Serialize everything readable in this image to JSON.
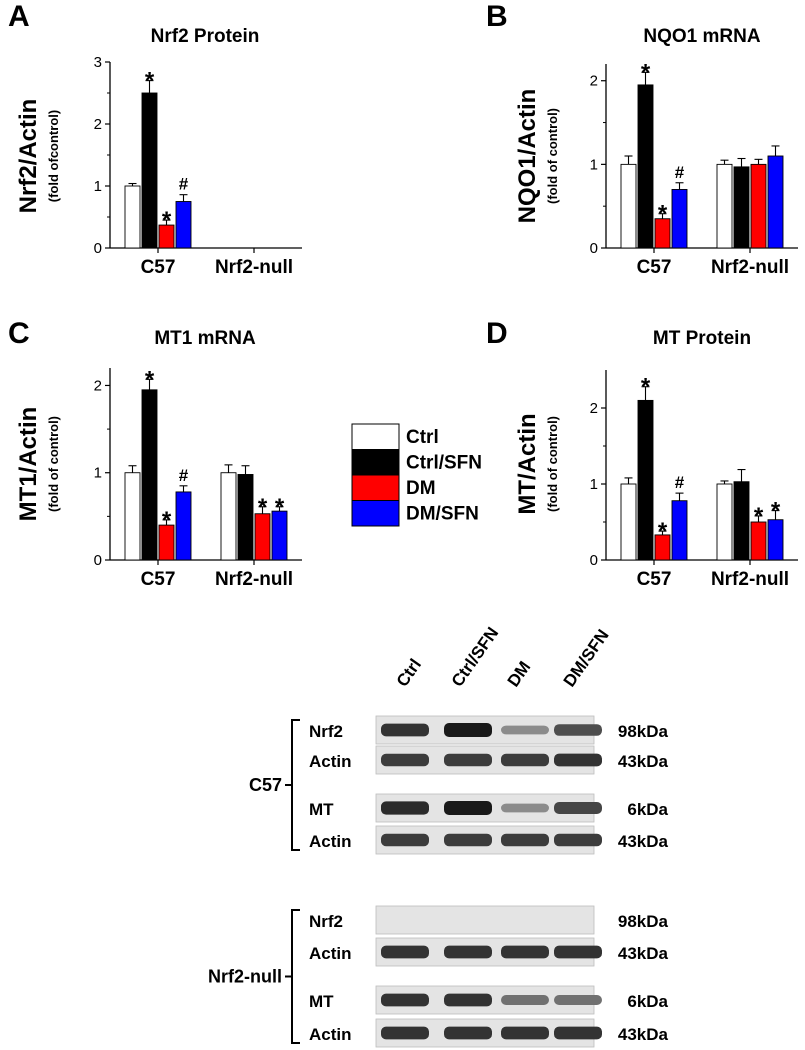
{
  "chart_data": [
    {
      "panel": "A",
      "type": "bar",
      "title": "Nrf2 Protein",
      "ylabel": "Nrf2/Actin",
      "ylabel_sub": "(fold ofcontrol)",
      "ylim": [
        0,
        3
      ],
      "yticks": [
        "0",
        "1",
        "2",
        "3"
      ],
      "categories": [
        "C57",
        "Nrf2-null"
      ],
      "series": [
        {
          "name": "Ctrl",
          "values": [
            1.0,
            null
          ],
          "errors": [
            0.04,
            null
          ],
          "marks": [
            "",
            ""
          ]
        },
        {
          "name": "Ctrl/SFN",
          "values": [
            2.5,
            null
          ],
          "errors": [
            0.2,
            null
          ],
          "marks": [
            "*",
            ""
          ]
        },
        {
          "name": "DM",
          "values": [
            0.37,
            null
          ],
          "errors": [
            0.08,
            null
          ],
          "marks": [
            "*",
            ""
          ]
        },
        {
          "name": "DM/SFN",
          "values": [
            0.75,
            null
          ],
          "errors": [
            0.11,
            null
          ],
          "marks": [
            "#",
            ""
          ]
        }
      ]
    },
    {
      "panel": "B",
      "type": "bar",
      "title": "NQO1 mRNA",
      "ylabel": "NQO1/Actin",
      "ylabel_sub": "(fold of control)",
      "ylim": [
        0,
        2.2
      ],
      "yticks": [
        "0",
        "1",
        "2"
      ],
      "categories": [
        "C57",
        "Nrf2-null"
      ],
      "series": [
        {
          "name": "Ctrl",
          "values": [
            1.0,
            1.0
          ],
          "errors": [
            0.1,
            0.05
          ],
          "marks": [
            "",
            ""
          ]
        },
        {
          "name": "Ctrl/SFN",
          "values": [
            1.95,
            0.97
          ],
          "errors": [
            0.15,
            0.1
          ],
          "marks": [
            "*",
            ""
          ]
        },
        {
          "name": "DM",
          "values": [
            0.35,
            1.0
          ],
          "errors": [
            0.06,
            0.06
          ],
          "marks": [
            "*",
            ""
          ]
        },
        {
          "name": "DM/SFN",
          "values": [
            0.7,
            1.1
          ],
          "errors": [
            0.08,
            0.12
          ],
          "marks": [
            "#",
            ""
          ]
        }
      ]
    },
    {
      "panel": "C",
      "type": "bar",
      "title": "MT1 mRNA",
      "ylabel": "MT1/Actin",
      "ylabel_sub": "(fold of control)",
      "ylim": [
        0,
        2.2
      ],
      "yticks": [
        "0",
        "1",
        "2"
      ],
      "categories": [
        "C57",
        "Nrf2-null"
      ],
      "series": [
        {
          "name": "Ctrl",
          "values": [
            1.0,
            1.0
          ],
          "errors": [
            0.08,
            0.09
          ],
          "marks": [
            "",
            ""
          ]
        },
        {
          "name": "Ctrl/SFN",
          "values": [
            1.95,
            0.98
          ],
          "errors": [
            0.12,
            0.1
          ],
          "marks": [
            "*",
            ""
          ]
        },
        {
          "name": "DM",
          "values": [
            0.4,
            0.53
          ],
          "errors": [
            0.06,
            0.08
          ],
          "marks": [
            "*",
            "*"
          ]
        },
        {
          "name": "DM/SFN",
          "values": [
            0.78,
            0.56
          ],
          "errors": [
            0.07,
            0.05
          ],
          "marks": [
            "#",
            "*"
          ]
        }
      ]
    },
    {
      "panel": "D",
      "type": "bar",
      "title": "MT Protein",
      "ylabel": "MT/Actin",
      "ylabel_sub": "(fold of control)",
      "ylim": [
        0,
        2.5
      ],
      "yticks": [
        "0",
        "1",
        "2"
      ],
      "categories": [
        "C57",
        "Nrf2-null"
      ],
      "series": [
        {
          "name": "Ctrl",
          "values": [
            1.0,
            1.0
          ],
          "errors": [
            0.08,
            0.04
          ],
          "marks": [
            "",
            ""
          ]
        },
        {
          "name": "Ctrl/SFN",
          "values": [
            2.1,
            1.03
          ],
          "errors": [
            0.18,
            0.16
          ],
          "marks": [
            "*",
            ""
          ]
        },
        {
          "name": "DM",
          "values": [
            0.33,
            0.5
          ],
          "errors": [
            0.05,
            0.08
          ],
          "marks": [
            "*",
            "*"
          ]
        },
        {
          "name": "DM/SFN",
          "values": [
            0.78,
            0.53
          ],
          "errors": [
            0.1,
            0.12
          ],
          "marks": [
            "#",
            "*"
          ]
        }
      ]
    }
  ],
  "colors": {
    "Ctrl": "#ffffff",
    "Ctrl/SFN": "#000000",
    "DM": "#ff0000",
    "DM/SFN": "#0000ff"
  },
  "legend": [
    "Ctrl",
    "Ctrl/SFN",
    "DM",
    "DM/SFN"
  ],
  "western_blot": {
    "lanes": [
      "Ctrl",
      "Ctrl/SFN",
      "DM",
      "DM/SFN"
    ],
    "groups": [
      {
        "name": "C57",
        "rows": [
          {
            "label": "Nrf2",
            "kda": "98kDa",
            "intensity": [
              0.85,
              1.0,
              0.35,
              0.7
            ]
          },
          {
            "label": "Actin",
            "kda": "43kDa",
            "intensity": [
              0.8,
              0.8,
              0.8,
              0.85
            ]
          },
          {
            "label": "MT",
            "kda": "6kDa",
            "intensity": [
              0.9,
              1.0,
              0.35,
              0.75
            ]
          },
          {
            "label": "Actin",
            "kda": "43kDa",
            "intensity": [
              0.8,
              0.8,
              0.8,
              0.8
            ]
          }
        ]
      },
      {
        "name": "Nrf2-null",
        "rows": [
          {
            "label": "Nrf2",
            "kda": "98kDa",
            "intensity": [
              0.0,
              0.0,
              0.0,
              0.0
            ]
          },
          {
            "label": "Actin",
            "kda": "43kDa",
            "intensity": [
              0.85,
              0.85,
              0.85,
              0.85
            ]
          },
          {
            "label": "MT",
            "kda": "6kDa",
            "intensity": [
              0.85,
              0.85,
              0.5,
              0.5
            ]
          },
          {
            "label": "Actin",
            "kda": "43kDa",
            "intensity": [
              0.85,
              0.85,
              0.85,
              0.85
            ]
          }
        ]
      }
    ]
  }
}
